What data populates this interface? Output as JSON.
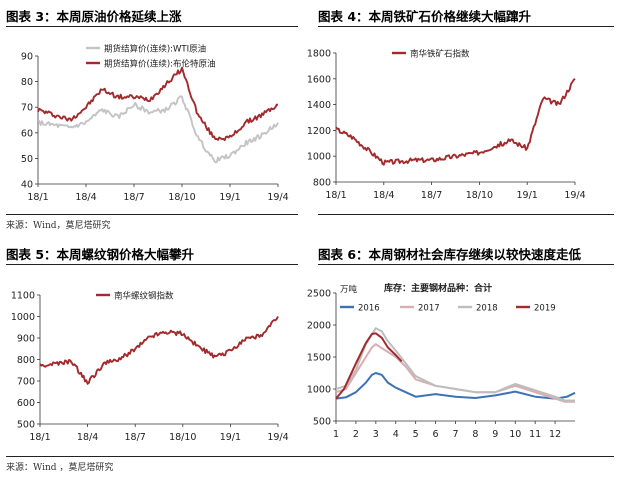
{
  "page": {
    "titles": {
      "p1": "图表 3：本周原油价格延续上涨",
      "p2": "图表 4：本周铁矿石价格继续大幅蹿升",
      "p3": "图表 5：本周螺纹钢价格大幅攀升",
      "p4": "图表 6：本周钢材社会库存继续以较快速度走低"
    },
    "sources": {
      "p1": "来源：Wind，莫尼塔研究",
      "p3": "来源：Wind ，莫尼塔研究"
    }
  },
  "colors": {
    "red": "#a32a2c",
    "grey": "#c4c4c4",
    "blue": "#3d73b6",
    "pink": "#d8aeb2",
    "light_grey": "#bdbdbd"
  },
  "chart_data": [
    {
      "id": "p1",
      "type": "line",
      "x": [
        "18/1",
        "18/2",
        "18/3",
        "18/4",
        "18/5",
        "18/6",
        "18/7",
        "18/8",
        "18/9",
        "18/10",
        "18/11",
        "18/12",
        "19/1",
        "19/2",
        "19/3",
        "19/4"
      ],
      "x_ticks": [
        "18/1",
        "18/4",
        "18/7",
        "18/10",
        "19/1",
        "19/4"
      ],
      "ylim": [
        40,
        90
      ],
      "yticks": [
        40,
        50,
        60,
        70,
        80,
        90
      ],
      "series": [
        {
          "name": "期货结算价(连续):WTI原油",
          "color": "#c4c4c4",
          "values": [
            64,
            63,
            62,
            64,
            69,
            66,
            71,
            68,
            69,
            74,
            58,
            49,
            51,
            56,
            59,
            64
          ]
        },
        {
          "name": "期货结算价(连续):布伦特原油",
          "color": "#a32a2c",
          "values": [
            69,
            67,
            65,
            70,
            77,
            74,
            74,
            73,
            79,
            85,
            67,
            58,
            58,
            64,
            67,
            71
          ]
        }
      ]
    },
    {
      "id": "p2",
      "type": "line",
      "x": [
        "18/1",
        "18/2",
        "18/3",
        "18/4",
        "18/5",
        "18/6",
        "18/7",
        "18/8",
        "18/9",
        "18/10",
        "18/11",
        "18/12",
        "19/1",
        "19/2",
        "19/3",
        "19/4"
      ],
      "x_ticks": [
        "18/1",
        "18/4",
        "18/7",
        "18/10",
        "19/1",
        "19/4"
      ],
      "ylim": [
        800,
        1800
      ],
      "yticks": [
        800,
        1000,
        1200,
        1400,
        1600,
        1800
      ],
      "series": [
        {
          "name": "南华铁矿石指数",
          "color": "#a32a2c",
          "values": [
            1210,
            1150,
            1050,
            950,
            960,
            970,
            970,
            990,
            1010,
            1030,
            1080,
            1120,
            1060,
            1450,
            1400,
            1600
          ]
        }
      ]
    },
    {
      "id": "p3",
      "type": "line",
      "x": [
        "18/1",
        "18/2",
        "18/3",
        "18/4",
        "18/5",
        "18/6",
        "18/7",
        "18/8",
        "18/9",
        "18/10",
        "18/11",
        "18/12",
        "19/1",
        "19/2",
        "19/3",
        "19/4"
      ],
      "x_ticks": [
        "18/1",
        "18/4",
        "18/7",
        "18/10",
        "19/1",
        "19/4"
      ],
      "ylim": [
        500,
        1100
      ],
      "yticks": [
        500,
        600,
        700,
        800,
        900,
        1000,
        1100
      ],
      "series": [
        {
          "name": "南华螺纹钢指数",
          "color": "#a32a2c",
          "values": [
            770,
            780,
            790,
            690,
            780,
            800,
            850,
            910,
            930,
            920,
            860,
            810,
            840,
            900,
            910,
            1000
          ]
        }
      ]
    },
    {
      "id": "p4",
      "type": "line",
      "title": "库存：主要钢材品种：合计",
      "unit": "万吨",
      "x_ticks": [
        "1",
        "2",
        "3",
        "4",
        "5",
        "6",
        "7",
        "8",
        "9",
        "10",
        "11",
        "12"
      ],
      "xlim": [
        1,
        13
      ],
      "ylim": [
        500,
        2500
      ],
      "yticks": [
        500,
        1000,
        1500,
        2000,
        2500
      ],
      "series": [
        {
          "name": "2016",
          "color": "#3d73b6",
          "points": [
            [
              1,
              850
            ],
            [
              1.5,
              870
            ],
            [
              2,
              950
            ],
            [
              2.5,
              1100
            ],
            [
              2.8,
              1220
            ],
            [
              3,
              1250
            ],
            [
              3.3,
              1220
            ],
            [
              3.6,
              1100
            ],
            [
              4,
              1020
            ],
            [
              4.5,
              950
            ],
            [
              5,
              880
            ],
            [
              6,
              920
            ],
            [
              7,
              880
            ],
            [
              8,
              860
            ],
            [
              9,
              900
            ],
            [
              10,
              960
            ],
            [
              11,
              880
            ],
            [
              12,
              850
            ],
            [
              12.6,
              880
            ],
            [
              13,
              940
            ]
          ]
        },
        {
          "name": "2017",
          "color": "#d8aeb2",
          "points": [
            [
              1,
              950
            ],
            [
              1.5,
              1000
            ],
            [
              2,
              1250
            ],
            [
              2.5,
              1500
            ],
            [
              2.8,
              1650
            ],
            [
              3,
              1700
            ],
            [
              3.5,
              1600
            ],
            [
              4,
              1500
            ],
            [
              4.5,
              1350
            ],
            [
              5,
              1150
            ],
            [
              6,
              1050
            ],
            [
              7,
              1000
            ],
            [
              8,
              950
            ],
            [
              9,
              950
            ],
            [
              10,
              1050
            ],
            [
              11,
              950
            ],
            [
              12,
              850
            ],
            [
              12.5,
              800
            ],
            [
              13,
              800
            ]
          ]
        },
        {
          "name": "2018",
          "color": "#bdbdbd",
          "points": [
            [
              1,
              1000
            ],
            [
              1.5,
              1050
            ],
            [
              2,
              1300
            ],
            [
              2.5,
              1700
            ],
            [
              3,
              1950
            ],
            [
              3.3,
              1900
            ],
            [
              3.6,
              1750
            ],
            [
              4,
              1600
            ],
            [
              4.5,
              1400
            ],
            [
              5,
              1200
            ],
            [
              6,
              1050
            ],
            [
              7,
              1000
            ],
            [
              8,
              950
            ],
            [
              9,
              950
            ],
            [
              10,
              1080
            ],
            [
              11,
              980
            ],
            [
              12,
              880
            ],
            [
              12.5,
              820
            ],
            [
              13,
              820
            ]
          ]
        },
        {
          "name": "2019",
          "color": "#a32a2c",
          "points": [
            [
              1,
              850
            ],
            [
              1.4,
              1000
            ],
            [
              2,
              1400
            ],
            [
              2.5,
              1720
            ],
            [
              2.8,
              1860
            ],
            [
              3,
              1870
            ],
            [
              3.3,
              1800
            ],
            [
              3.6,
              1650
            ],
            [
              4,
              1530
            ],
            [
              4.3,
              1430
            ]
          ]
        }
      ]
    }
  ]
}
